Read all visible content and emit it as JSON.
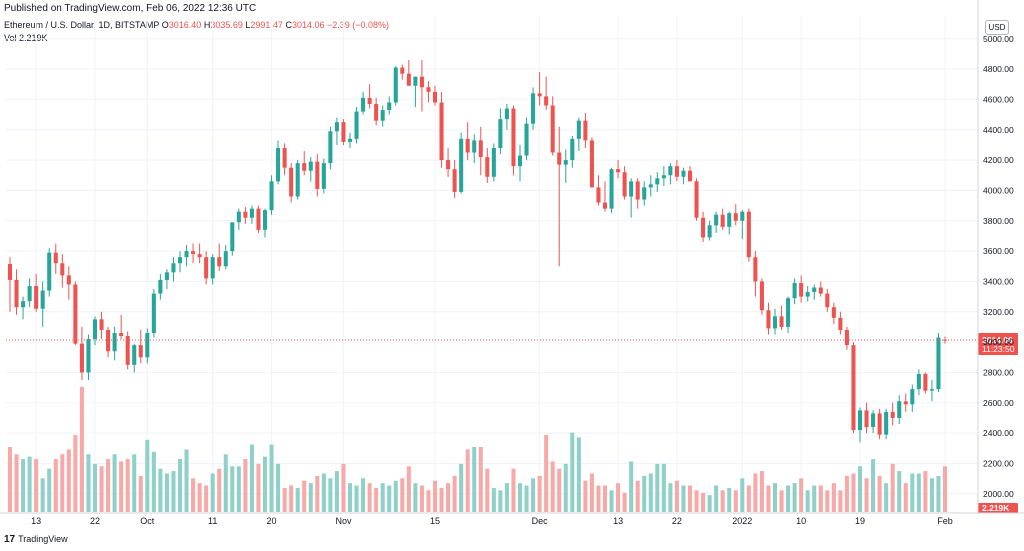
{
  "header": {
    "published": "Published on TradingView.com, Feb 06, 2022 12:36 UTC",
    "symbol": "Ethereum / U.S. Dollar, 1D, BITSTAMP",
    "o_label": "O",
    "o_value": "3016.40",
    "h_label": "H",
    "h_value": "3035.69",
    "l_label": "L",
    "l_value": "2991.47",
    "c_label": "C",
    "c_value": "3014.06",
    "change": "−2.39 (−0.08%)",
    "vol_label": "Vol",
    "vol_value": "2.219K",
    "currency_button": "USD"
  },
  "footer": {
    "logo": "17",
    "brand": "TradingView"
  },
  "colors": {
    "up": "#26a69a",
    "down": "#ef5350",
    "up_vol": "#8fd1c9",
    "down_vol": "#f7a9a7",
    "grid": "#f0f3fa",
    "axis_text": "#131722"
  },
  "chart_data": {
    "type": "candlestick",
    "title": "Ethereum / U.S. Dollar, 1D, BITSTAMP",
    "ylim": [
      1880,
      5150
    ],
    "y_ticks": [
      2000,
      2200,
      2400,
      2600,
      2800,
      3000,
      3200,
      3400,
      3600,
      3800,
      4000,
      4200,
      4400,
      4600,
      4800,
      5000
    ],
    "y_tick_labels": [
      "2000.00",
      "2200.00",
      "2400.00",
      "2600.00",
      "2800.00",
      "3000.00",
      "3200.00",
      "3400.00",
      "3600.00",
      "3800.00",
      "4000.00",
      "4200.00",
      "4400.00",
      "4600.00",
      "4800.00",
      "5000.00"
    ],
    "x_ticks": [
      {
        "index": 4,
        "label": "13"
      },
      {
        "index": 13,
        "label": "22"
      },
      {
        "index": 21,
        "label": "Oct"
      },
      {
        "index": 31,
        "label": "11"
      },
      {
        "index": 40,
        "label": "20"
      },
      {
        "index": 51,
        "label": "Nov"
      },
      {
        "index": 65,
        "label": "15"
      },
      {
        "index": 81,
        "label": "Dec"
      },
      {
        "index": 93,
        "label": "13"
      },
      {
        "index": 102,
        "label": "22"
      },
      {
        "index": 112,
        "label": "2022"
      },
      {
        "index": 121,
        "label": "10"
      },
      {
        "index": 130,
        "label": "19"
      },
      {
        "index": 143,
        "label": "Feb"
      }
    ],
    "last_price": {
      "value": 3014.06,
      "label": "3014.06",
      "countdown": "11:23:50"
    },
    "last_volume_label": "2.219K",
    "candles": [
      [
        3515,
        3560,
        3200,
        3410
      ],
      [
        3410,
        3480,
        3180,
        3230
      ],
      [
        3230,
        3300,
        3150,
        3270
      ],
      [
        3270,
        3420,
        3230,
        3370
      ],
      [
        3370,
        3450,
        3200,
        3220
      ],
      [
        3220,
        3400,
        3100,
        3340
      ],
      [
        3340,
        3620,
        3300,
        3590
      ],
      [
        3590,
        3650,
        3450,
        3520
      ],
      [
        3520,
        3580,
        3360,
        3440
      ],
      [
        3440,
        3500,
        3280,
        3380
      ],
      [
        3380,
        3400,
        2980,
        2990
      ],
      [
        2990,
        3100,
        2750,
        2800
      ],
      [
        2800,
        3050,
        2750,
        3020
      ],
      [
        3020,
        3170,
        2980,
        3150
      ],
      [
        3150,
        3200,
        3020,
        3080
      ],
      [
        3080,
        3100,
        2900,
        2940
      ],
      [
        2940,
        3100,
        2880,
        3060
      ],
      [
        3060,
        3180,
        3020,
        3040
      ],
      [
        3040,
        3070,
        2820,
        2850
      ],
      [
        2850,
        2990,
        2800,
        2980
      ],
      [
        2980,
        3080,
        2860,
        2900
      ],
      [
        2900,
        3090,
        2860,
        3060
      ],
      [
        3060,
        3350,
        3030,
        3320
      ],
      [
        3320,
        3450,
        3280,
        3410
      ],
      [
        3410,
        3480,
        3350,
        3460
      ],
      [
        3460,
        3560,
        3400,
        3520
      ],
      [
        3520,
        3600,
        3460,
        3560
      ],
      [
        3560,
        3640,
        3500,
        3600
      ],
      [
        3600,
        3650,
        3520,
        3580
      ],
      [
        3580,
        3650,
        3520,
        3560
      ],
      [
        3560,
        3600,
        3380,
        3420
      ],
      [
        3420,
        3580,
        3380,
        3560
      ],
      [
        3560,
        3650,
        3470,
        3500
      ],
      [
        3500,
        3640,
        3480,
        3600
      ],
      [
        3600,
        3760,
        3570,
        3790
      ],
      [
        3790,
        3880,
        3740,
        3860
      ],
      [
        3860,
        3890,
        3780,
        3820
      ],
      [
        3820,
        3900,
        3780,
        3880
      ],
      [
        3880,
        3900,
        3720,
        3740
      ],
      [
        3740,
        3880,
        3690,
        3870
      ],
      [
        3870,
        4100,
        3840,
        4060
      ],
      [
        4060,
        4330,
        4040,
        4280
      ],
      [
        4280,
        4310,
        4100,
        4150
      ],
      [
        4150,
        4180,
        3920,
        3960
      ],
      [
        3960,
        4200,
        3940,
        4180
      ],
      [
        4180,
        4260,
        4100,
        4130
      ],
      [
        4130,
        4220,
        4060,
        4190
      ],
      [
        4190,
        4240,
        3960,
        4010
      ],
      [
        4010,
        4210,
        3980,
        4180
      ],
      [
        4180,
        4420,
        4140,
        4390
      ],
      [
        4390,
        4480,
        4300,
        4450
      ],
      [
        4450,
        4470,
        4300,
        4320
      ],
      [
        4320,
        4380,
        4280,
        4340
      ],
      [
        4340,
        4550,
        4310,
        4520
      ],
      [
        4520,
        4650,
        4500,
        4610
      ],
      [
        4610,
        4700,
        4540,
        4570
      ],
      [
        4570,
        4610,
        4430,
        4460
      ],
      [
        4460,
        4560,
        4420,
        4530
      ],
      [
        4530,
        4620,
        4500,
        4580
      ],
      [
        4580,
        4820,
        4560,
        4810
      ],
      [
        4810,
        4830,
        4730,
        4770
      ],
      [
        4770,
        4860,
        4700,
        4690
      ],
      [
        4690,
        4750,
        4550,
        4750
      ],
      [
        4750,
        4860,
        4520,
        4680
      ],
      [
        4680,
        4720,
        4580,
        4650
      ],
      [
        4650,
        4690,
        4560,
        4580
      ],
      [
        4580,
        4650,
        4150,
        4200
      ],
      [
        4200,
        4280,
        4090,
        4140
      ],
      [
        4140,
        4200,
        3950,
        3990
      ],
      [
        3990,
        4380,
        3980,
        4340
      ],
      [
        4340,
        4450,
        4200,
        4250
      ],
      [
        4250,
        4370,
        4180,
        4330
      ],
      [
        4330,
        4420,
        4100,
        4220
      ],
      [
        4220,
        4280,
        4050,
        4090
      ],
      [
        4090,
        4310,
        4060,
        4280
      ],
      [
        4280,
        4540,
        4240,
        4470
      ],
      [
        4470,
        4570,
        4400,
        4540
      ],
      [
        4540,
        4560,
        4100,
        4160
      ],
      [
        4160,
        4300,
        4060,
        4230
      ],
      [
        4230,
        4480,
        4200,
        4440
      ],
      [
        4440,
        4680,
        4400,
        4640
      ],
      [
        4640,
        4780,
        4560,
        4620
      ],
      [
        4620,
        4750,
        4530,
        4560
      ],
      [
        4560,
        4620,
        4230,
        4250
      ],
      [
        4250,
        4420,
        3500,
        4170
      ],
      [
        4170,
        4270,
        4050,
        4200
      ],
      [
        4200,
        4360,
        4150,
        4340
      ],
      [
        4340,
        4480,
        4260,
        4460
      ],
      [
        4460,
        4510,
        4280,
        4330
      ],
      [
        4330,
        4350,
        4020,
        4020
      ],
      [
        4020,
        4100,
        3900,
        3920
      ],
      [
        3920,
        4060,
        3860,
        3880
      ],
      [
        3880,
        4150,
        3850,
        4140
      ],
      [
        4140,
        4200,
        4080,
        4120
      ],
      [
        4120,
        4160,
        3940,
        3960
      ],
      [
        3960,
        4080,
        3820,
        4060
      ],
      [
        4060,
        4080,
        3880,
        3940
      ],
      [
        3940,
        4060,
        3900,
        4020
      ],
      [
        4020,
        4100,
        3960,
        4040
      ],
      [
        4040,
        4120,
        3990,
        4080
      ],
      [
        4080,
        4160,
        4030,
        4100
      ],
      [
        4100,
        4180,
        4040,
        4160
      ],
      [
        4160,
        4200,
        4060,
        4090
      ],
      [
        4090,
        4150,
        4040,
        4130
      ],
      [
        4130,
        4160,
        4060,
        4060
      ],
      [
        4060,
        4080,
        3800,
        3820
      ],
      [
        3820,
        3860,
        3660,
        3690
      ],
      [
        3690,
        3800,
        3670,
        3770
      ],
      [
        3770,
        3860,
        3720,
        3840
      ],
      [
        3840,
        3880,
        3740,
        3760
      ],
      [
        3760,
        3860,
        3710,
        3850
      ],
      [
        3850,
        3910,
        3770,
        3800
      ],
      [
        3800,
        3870,
        3680,
        3860
      ],
      [
        3860,
        3880,
        3530,
        3560
      ],
      [
        3560,
        3600,
        3300,
        3400
      ],
      [
        3400,
        3420,
        3180,
        3210
      ],
      [
        3210,
        3260,
        3050,
        3090
      ],
      [
        3090,
        3220,
        3050,
        3170
      ],
      [
        3170,
        3240,
        3080,
        3100
      ],
      [
        3100,
        3300,
        3060,
        3290
      ],
      [
        3290,
        3420,
        3250,
        3390
      ],
      [
        3390,
        3440,
        3260,
        3300
      ],
      [
        3300,
        3370,
        3270,
        3330
      ],
      [
        3330,
        3380,
        3280,
        3360
      ],
      [
        3360,
        3400,
        3300,
        3320
      ],
      [
        3320,
        3350,
        3200,
        3230
      ],
      [
        3230,
        3260,
        3120,
        3160
      ],
      [
        3160,
        3200,
        3050,
        3080
      ],
      [
        3080,
        3100,
        2950,
        2980
      ],
      [
        2980,
        3000,
        2400,
        2420
      ],
      [
        2420,
        2570,
        2340,
        2550
      ],
      [
        2550,
        2600,
        2400,
        2440
      ],
      [
        2440,
        2550,
        2400,
        2530
      ],
      [
        2530,
        2560,
        2360,
        2390
      ],
      [
        2390,
        2560,
        2360,
        2540
      ],
      [
        2540,
        2600,
        2450,
        2500
      ],
      [
        2500,
        2650,
        2460,
        2610
      ],
      [
        2610,
        2660,
        2540,
        2590
      ],
      [
        2590,
        2720,
        2540,
        2690
      ],
      [
        2690,
        2820,
        2650,
        2790
      ],
      [
        2790,
        2800,
        2660,
        2680
      ],
      [
        2680,
        2750,
        2610,
        2690
      ],
      [
        2690,
        3060,
        2670,
        3030
      ],
      [
        3016,
        3036,
        2991,
        3014
      ]
    ],
    "volumes": [
      1.35,
      1.2,
      1.1,
      1.15,
      1.1,
      0.7,
      0.9,
      1.1,
      1.2,
      1.3,
      1.6,
      2.6,
      1.2,
      1.0,
      0.95,
      1.1,
      1.2,
      1.05,
      1.1,
      1.2,
      0.75,
      1.5,
      1.25,
      0.9,
      0.8,
      0.85,
      1.1,
      1.3,
      0.7,
      0.6,
      0.55,
      0.8,
      0.9,
      1.2,
      0.95,
      0.95,
      1.1,
      1.4,
      1.0,
      1.15,
      1.4,
      1.0,
      0.5,
      0.55,
      0.5,
      0.65,
      0.6,
      0.75,
      0.8,
      0.7,
      0.85,
      1.0,
      0.6,
      0.55,
      0.7,
      0.6,
      0.5,
      0.6,
      0.55,
      0.65,
      0.7,
      0.95,
      0.6,
      0.55,
      0.45,
      0.65,
      0.5,
      0.6,
      0.75,
      1.0,
      1.3,
      1.35,
      1.35,
      0.9,
      0.5,
      0.45,
      0.6,
      0.9,
      0.6,
      0.55,
      0.7,
      0.75,
      1.6,
      1.05,
      0.9,
      1.0,
      1.65,
      1.55,
      0.65,
      0.8,
      0.55,
      0.55,
      0.45,
      0.6,
      0.4,
      1.05,
      0.65,
      0.75,
      0.8,
      1.0,
      1.0,
      0.6,
      0.65,
      0.55,
      0.55,
      0.45,
      0.4,
      0.35,
      0.55,
      0.45,
      0.5,
      0.45,
      0.7,
      0.55,
      0.8,
      0.85,
      0.55,
      0.6,
      0.45,
      0.55,
      0.6,
      0.7,
      0.45,
      0.55,
      0.55,
      0.45,
      0.6,
      0.45,
      0.75,
      0.8,
      0.95,
      0.7,
      1.1,
      0.75,
      0.6,
      1.0,
      0.85,
      0.6,
      0.8,
      0.8,
      0.85,
      0.7,
      0.75,
      0.95,
      0.4
    ]
  }
}
